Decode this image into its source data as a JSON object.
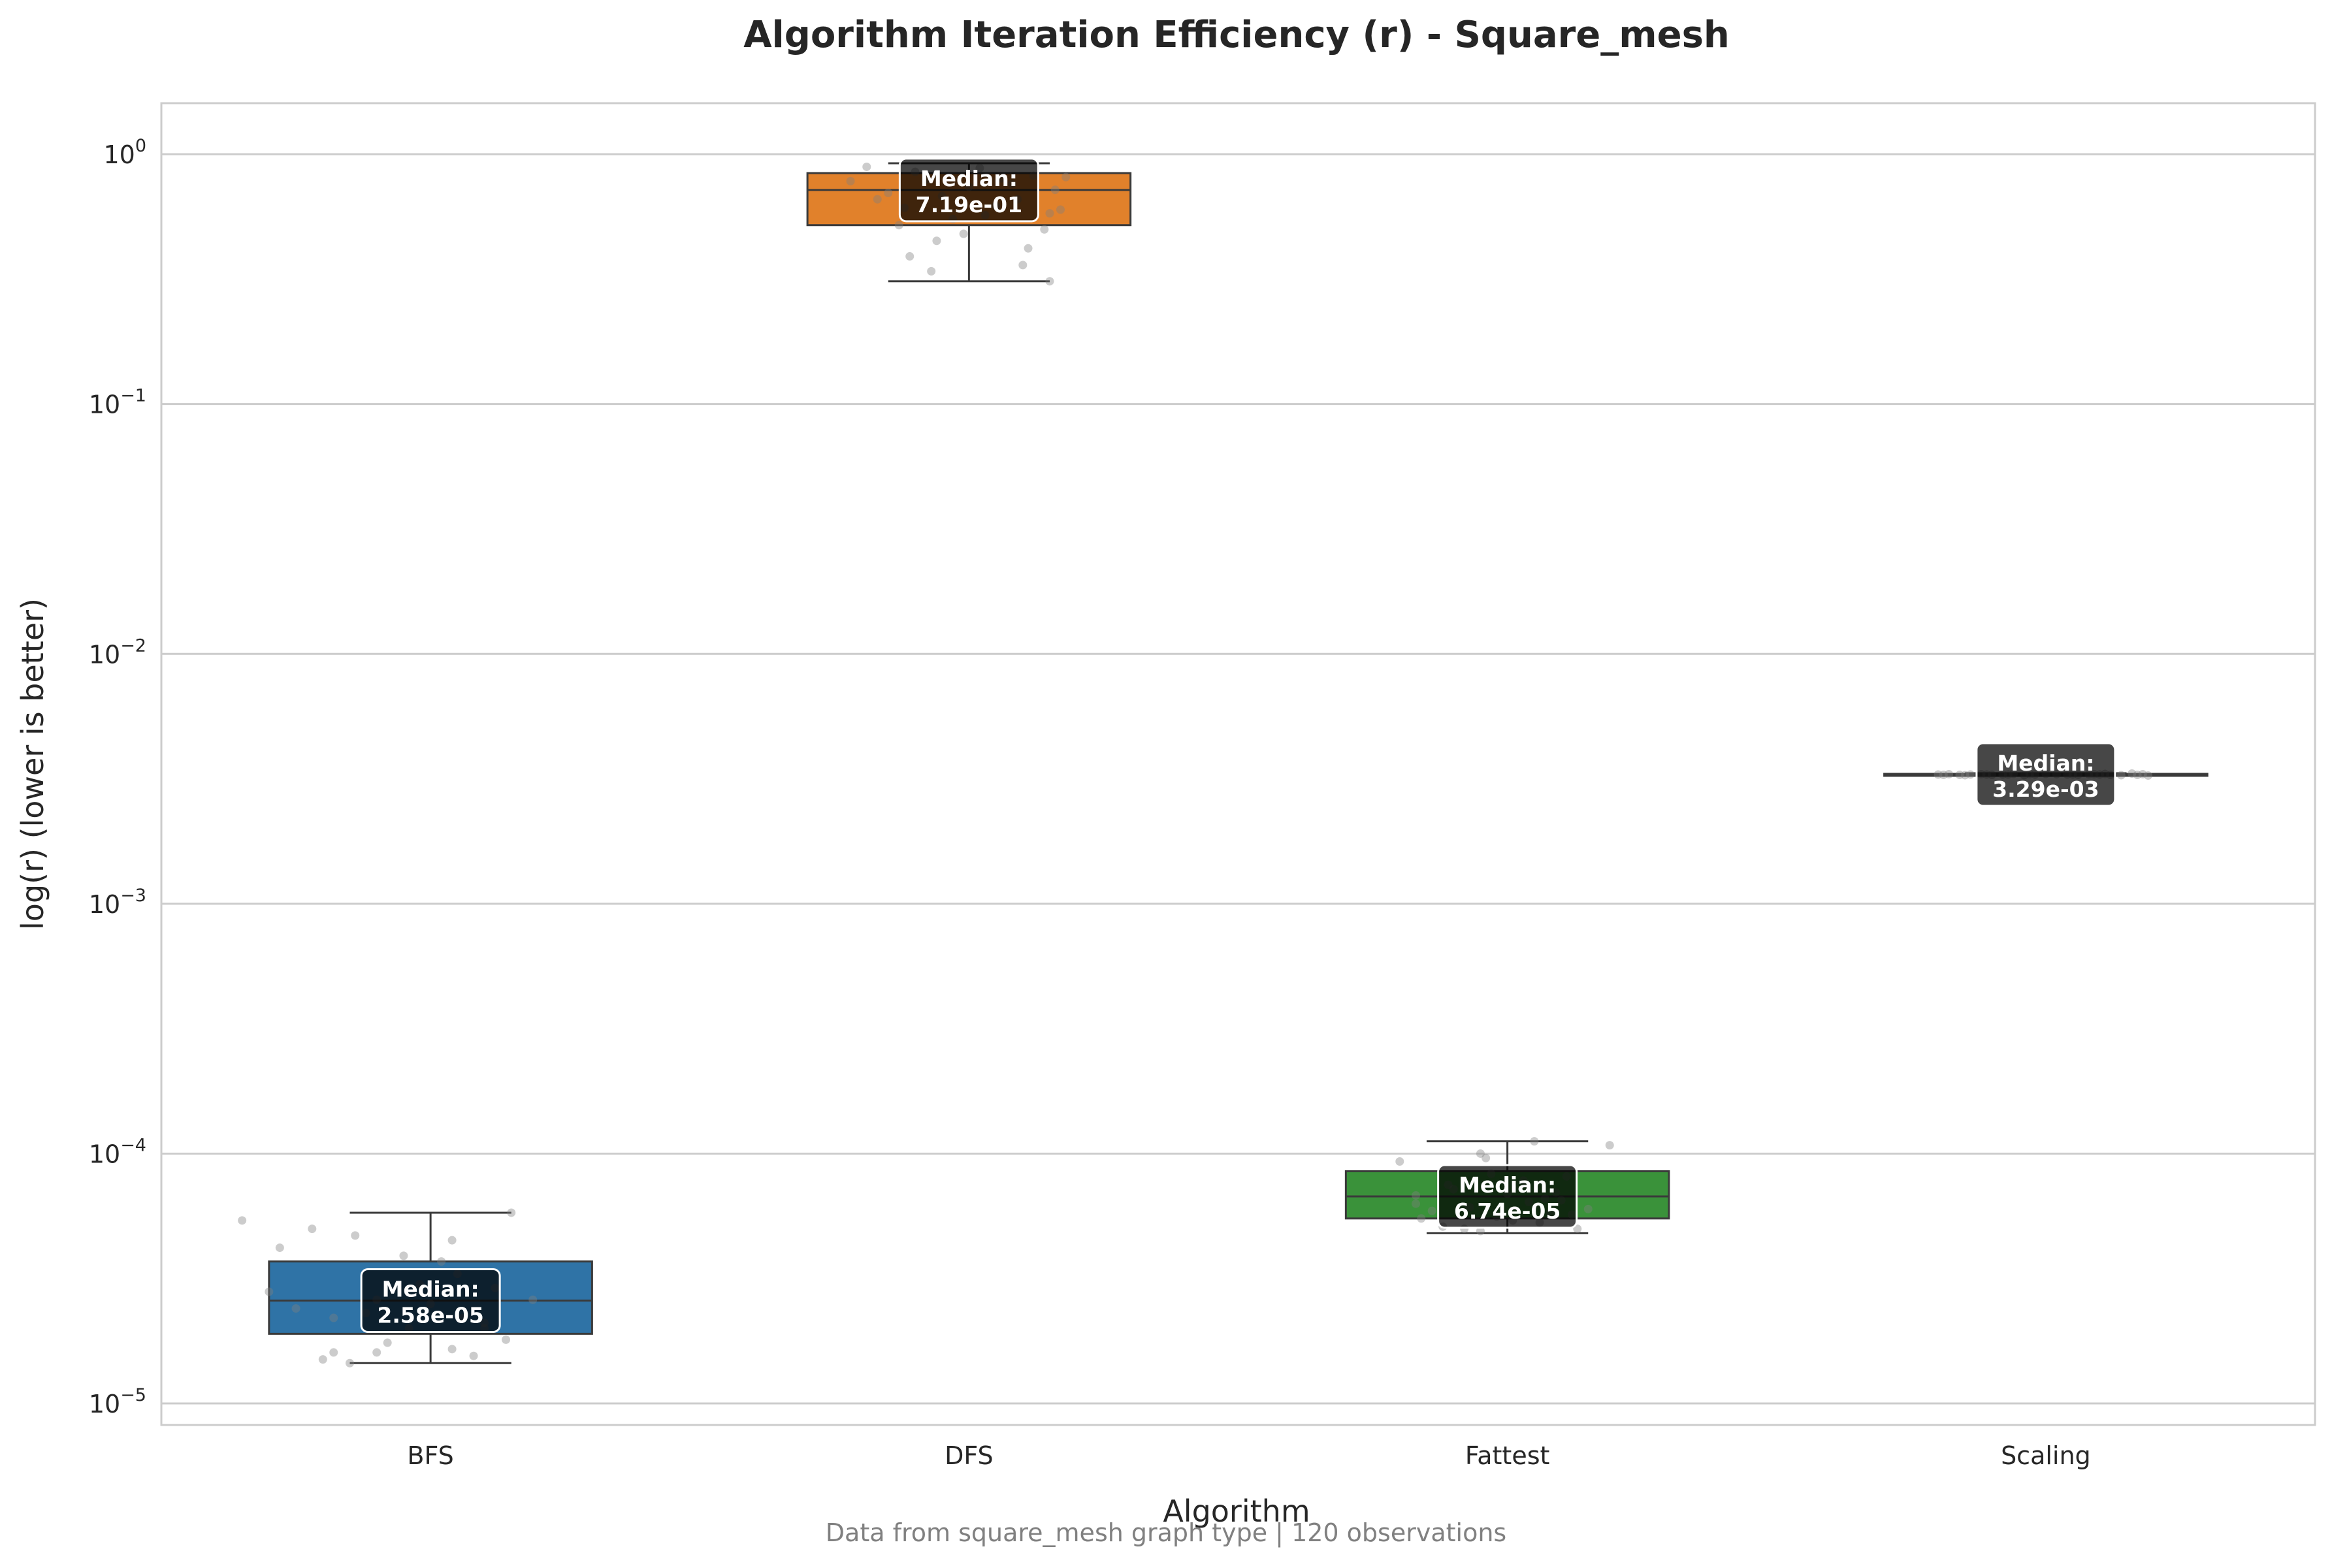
{
  "chart_data": {
    "type": "box",
    "title": "Algorithm Iteration Efficiency (r) - Square_mesh",
    "xlabel": "Algorithm",
    "ylabel": "log(r) (lower is better)",
    "yscale": "log",
    "ylim": [
      8.2e-06,
      1.6
    ],
    "yticks": [
      {
        "value": 1e-05,
        "base": "10",
        "exp": "−5"
      },
      {
        "value": 0.0001,
        "base": "10",
        "exp": "−4"
      },
      {
        "value": 0.001,
        "base": "10",
        "exp": "−3"
      },
      {
        "value": 0.01,
        "base": "10",
        "exp": "−2"
      },
      {
        "value": 0.1,
        "base": "10",
        "exp": "−1"
      },
      {
        "value": 1,
        "base": "10",
        "exp": "0"
      }
    ],
    "grid": true,
    "footer": "Data from square_mesh graph type | 120 observations",
    "median_label_prefix": "Median:",
    "categories": [
      "BFS",
      "DFS",
      "Fattest",
      "Scaling"
    ],
    "series": [
      {
        "category": "BFS",
        "color": "#2f73a6",
        "whisker_low": 1.45e-05,
        "q1": 1.9e-05,
        "median": 2.58e-05,
        "q3": 3.7e-05,
        "whisker_high": 5.8e-05,
        "median_label": "2.58e-05",
        "points": [
          [
            -0.35,
            5.4e-05
          ],
          [
            -0.28,
            4.2e-05
          ],
          [
            -0.22,
            5e-05
          ],
          [
            -0.3,
            2.8e-05
          ],
          [
            -0.25,
            2.4e-05
          ],
          [
            -0.18,
            2.2e-05
          ],
          [
            -0.1,
            2.6e-05
          ],
          [
            -0.05,
            3.9e-05
          ],
          [
            0.02,
            3.7e-05
          ],
          [
            0.05,
            3.3e-05
          ],
          [
            -0.14,
            4.7e-05
          ],
          [
            0.04,
            4.5e-05
          ],
          [
            0.1,
            2e-05
          ],
          [
            0.14,
            1.8e-05
          ],
          [
            0.15,
            5.8e-05
          ],
          [
            0.19,
            2.6e-05
          ],
          [
            -0.2,
            1.5e-05
          ],
          [
            -0.18,
            1.6e-05
          ],
          [
            -0.08,
            1.75e-05
          ],
          [
            -0.1,
            1.6e-05
          ],
          [
            0.04,
            1.65e-05
          ],
          [
            0.08,
            1.55e-05
          ],
          [
            -0.15,
            1.45e-05
          ],
          [
            0.12,
            2.9e-05
          ],
          [
            -0.02,
            3e-05
          ],
          [
            0.1,
            2.1e-05
          ],
          [
            -0.12,
            2.3e-05
          ],
          [
            0.0,
            2.5e-05
          ],
          [
            0.06,
            2.2e-05
          ],
          [
            -0.04,
            2e-05
          ]
        ]
      },
      {
        "category": "DFS",
        "color": "#e1812b",
        "whisker_low": 0.31,
        "q1": 0.52,
        "median": 0.719,
        "q3": 0.84,
        "whisker_high": 0.92,
        "median_label": "7.19e-01",
        "points": [
          [
            -0.19,
            0.89
          ],
          [
            -0.22,
            0.78
          ],
          [
            -0.17,
            0.66
          ],
          [
            -0.13,
            0.52
          ],
          [
            -0.11,
            0.39
          ],
          [
            -0.07,
            0.34
          ],
          [
            -0.06,
            0.45
          ],
          [
            -0.01,
            0.48
          ],
          [
            0.1,
            0.36
          ],
          [
            0.11,
            0.42
          ],
          [
            0.15,
            0.58
          ],
          [
            0.15,
            0.31
          ],
          [
            0.16,
            0.72
          ],
          [
            0.17,
            0.6
          ],
          [
            0.18,
            0.81
          ],
          [
            -0.15,
            0.7
          ],
          [
            -0.1,
            0.85
          ],
          [
            0.05,
            0.62
          ],
          [
            0.08,
            0.76
          ],
          [
            -0.03,
            0.55
          ],
          [
            0.12,
            0.82
          ],
          [
            -0.05,
            0.68
          ],
          [
            0.02,
            0.88
          ],
          [
            0.14,
            0.5
          ],
          [
            -0.12,
            0.61
          ],
          [
            0.0,
            0.74
          ],
          [
            0.06,
            0.8
          ],
          [
            -0.08,
            0.79
          ],
          [
            0.09,
            0.66
          ],
          [
            0.03,
            0.57
          ]
        ]
      },
      {
        "category": "Fattest",
        "color": "#3a923a",
        "whisker_low": 4.8e-05,
        "q1": 5.5e-05,
        "median": 6.74e-05,
        "q3": 8.5e-05,
        "whisker_high": 0.000112,
        "median_label": "6.74e-05",
        "points": [
          [
            -0.2,
            9.3e-05
          ],
          [
            -0.17,
            6.8e-05
          ],
          [
            -0.17,
            6.3e-05
          ],
          [
            -0.12,
            5.1e-05
          ],
          [
            -0.08,
            5e-05
          ],
          [
            -0.05,
            4.9e-05
          ],
          [
            -0.05,
            0.0001
          ],
          [
            -0.04,
            9.6e-05
          ],
          [
            0.0,
            6.9e-05
          ],
          [
            0.05,
            0.000112
          ],
          [
            0.08,
            5.8e-05
          ],
          [
            0.1,
            6.5e-05
          ],
          [
            0.13,
            5e-05
          ],
          [
            0.15,
            6e-05
          ],
          [
            0.19,
            0.000108
          ],
          [
            -0.1,
            7.2e-05
          ],
          [
            -0.02,
            5.6e-05
          ],
          [
            0.03,
            7.8e-05
          ],
          [
            0.06,
            5.3e-05
          ],
          [
            -0.14,
            5.9e-05
          ],
          [
            0.11,
            8.1e-05
          ],
          [
            -0.07,
            6.1e-05
          ],
          [
            0.01,
            5.4e-05
          ],
          [
            0.09,
            7e-05
          ],
          [
            -0.03,
            8.3e-05
          ],
          [
            0.12,
            5.7e-05
          ],
          [
            -0.11,
            7.5e-05
          ],
          [
            0.04,
            6.4e-05
          ],
          [
            -0.16,
            5.5e-05
          ],
          [
            0.07,
            6.6e-05
          ]
        ]
      },
      {
        "category": "Scaling",
        "color": "#3d3d3d",
        "whisker_low": 0.00325,
        "q1": 0.00327,
        "median": 0.00329,
        "q3": 0.00331,
        "whisker_high": 0.00333,
        "median_label": "3.29e-03",
        "points": [
          [
            -0.2,
            0.00329
          ],
          [
            -0.16,
            0.00328
          ],
          [
            -0.12,
            0.0033
          ],
          [
            -0.08,
            0.00329
          ],
          [
            -0.04,
            0.00327
          ],
          [
            0.0,
            0.00331
          ],
          [
            0.04,
            0.00329
          ],
          [
            0.08,
            0.0033
          ],
          [
            0.12,
            0.00328
          ],
          [
            0.16,
            0.00332
          ],
          [
            0.19,
            0.00326
          ],
          [
            -0.18,
            0.0033
          ],
          [
            -0.14,
            0.00329
          ],
          [
            -0.1,
            0.00328
          ],
          [
            -0.06,
            0.00331
          ],
          [
            -0.02,
            0.00329
          ],
          [
            0.02,
            0.0033
          ],
          [
            0.06,
            0.00328
          ],
          [
            0.1,
            0.00329
          ],
          [
            0.14,
            0.00327
          ],
          [
            0.18,
            0.0033
          ],
          [
            -0.19,
            0.00328
          ],
          [
            -0.11,
            0.00329
          ],
          [
            -0.03,
            0.0033
          ],
          [
            0.05,
            0.00329
          ],
          [
            0.11,
            0.00331
          ],
          [
            0.17,
            0.00328
          ],
          [
            -0.07,
            0.00329
          ],
          [
            0.09,
            0.0033
          ],
          [
            -0.15,
            0.00327
          ]
        ]
      }
    ]
  }
}
